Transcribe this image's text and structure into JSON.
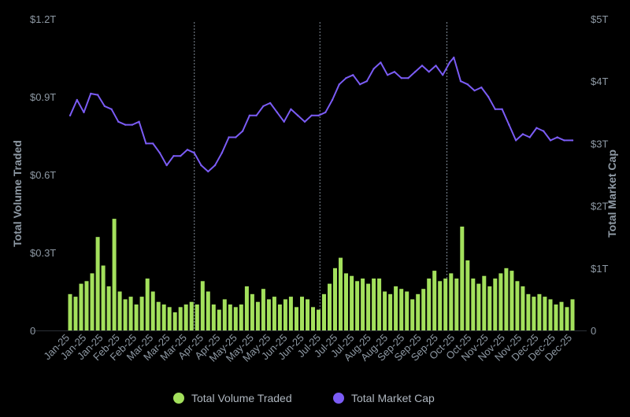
{
  "chart_data": {
    "type": "bar+line",
    "title": "",
    "left_axis": {
      "label": "Total Volume Traded",
      "ticks": [
        "0",
        "$0.3T",
        "$0.6T",
        "$0.9T",
        "$1.2T"
      ],
      "range": [
        0,
        1.2
      ],
      "unit": "trillion USD"
    },
    "right_axis": {
      "label": "Total Market Cap",
      "ticks": [
        "0",
        "$1T",
        "$2T",
        "$3T",
        "$4T",
        "$5T"
      ],
      "range": [
        0,
        5
      ],
      "unit": "trillion USD"
    },
    "x_axis": {
      "range": [
        "2025-01-01",
        "2025-12-31"
      ],
      "tick_labels": [
        "Jan-25",
        "Jan-25",
        "Jan-25",
        "Feb-25",
        "Feb-25",
        "Mar-25",
        "Mar-25",
        "Mar-25",
        "Apr-25",
        "Apr-25",
        "May-25",
        "May-25",
        "May-25",
        "Jun-25",
        "Jun-25",
        "Jul-25",
        "Jul-25",
        "Jul-25",
        "Aug-25",
        "Aug-25",
        "Sep-25",
        "Sep-25",
        "Sep-25",
        "Oct-25",
        "Oct-25",
        "Nov-25",
        "Nov-25",
        "Nov-25",
        "Dec-25",
        "Dec-25",
        "Dec-25"
      ]
    },
    "reference_lines": [
      "2025-04-01",
      "2025-07-01",
      "2025-10-01"
    ],
    "grid": false,
    "legend": {
      "position": "bottom",
      "items": [
        {
          "name": "Total Volume Traded",
          "color": "#a3e05c"
        },
        {
          "name": "Total Market Cap",
          "color": "#7b5cf5"
        }
      ]
    },
    "series": [
      {
        "name": "Total Volume Traded",
        "type": "bar",
        "axis": "left",
        "color": "#a3e05c",
        "points": [
          {
            "date": "2025-01-01",
            "value": 0.14
          },
          {
            "date": "2025-01-05",
            "value": 0.13
          },
          {
            "date": "2025-01-09",
            "value": 0.18
          },
          {
            "date": "2025-01-13",
            "value": 0.19
          },
          {
            "date": "2025-01-17",
            "value": 0.22
          },
          {
            "date": "2025-01-21",
            "value": 0.36
          },
          {
            "date": "2025-01-25",
            "value": 0.25
          },
          {
            "date": "2025-01-29",
            "value": 0.17
          },
          {
            "date": "2025-02-02",
            "value": 0.43
          },
          {
            "date": "2025-02-06",
            "value": 0.15
          },
          {
            "date": "2025-02-10",
            "value": 0.12
          },
          {
            "date": "2025-02-14",
            "value": 0.13
          },
          {
            "date": "2025-02-18",
            "value": 0.1
          },
          {
            "date": "2025-02-22",
            "value": 0.13
          },
          {
            "date": "2025-02-26",
            "value": 0.2
          },
          {
            "date": "2025-03-02",
            "value": 0.15
          },
          {
            "date": "2025-03-06",
            "value": 0.11
          },
          {
            "date": "2025-03-10",
            "value": 0.1
          },
          {
            "date": "2025-03-14",
            "value": 0.09
          },
          {
            "date": "2025-03-18",
            "value": 0.07
          },
          {
            "date": "2025-03-22",
            "value": 0.09
          },
          {
            "date": "2025-03-26",
            "value": 0.1
          },
          {
            "date": "2025-03-30",
            "value": 0.11
          },
          {
            "date": "2025-04-03",
            "value": 0.1
          },
          {
            "date": "2025-04-07",
            "value": 0.19
          },
          {
            "date": "2025-04-11",
            "value": 0.15
          },
          {
            "date": "2025-04-15",
            "value": 0.1
          },
          {
            "date": "2025-04-19",
            "value": 0.08
          },
          {
            "date": "2025-04-23",
            "value": 0.12
          },
          {
            "date": "2025-04-27",
            "value": 0.1
          },
          {
            "date": "2025-05-01",
            "value": 0.09
          },
          {
            "date": "2025-05-05",
            "value": 0.1
          },
          {
            "date": "2025-05-09",
            "value": 0.17
          },
          {
            "date": "2025-05-13",
            "value": 0.14
          },
          {
            "date": "2025-05-17",
            "value": 0.11
          },
          {
            "date": "2025-05-21",
            "value": 0.16
          },
          {
            "date": "2025-05-25",
            "value": 0.12
          },
          {
            "date": "2025-05-29",
            "value": 0.13
          },
          {
            "date": "2025-06-02",
            "value": 0.1
          },
          {
            "date": "2025-06-06",
            "value": 0.12
          },
          {
            "date": "2025-06-10",
            "value": 0.13
          },
          {
            "date": "2025-06-14",
            "value": 0.09
          },
          {
            "date": "2025-06-18",
            "value": 0.13
          },
          {
            "date": "2025-06-22",
            "value": 0.12
          },
          {
            "date": "2025-06-26",
            "value": 0.09
          },
          {
            "date": "2025-06-30",
            "value": 0.08
          },
          {
            "date": "2025-07-04",
            "value": 0.14
          },
          {
            "date": "2025-07-08",
            "value": 0.18
          },
          {
            "date": "2025-07-12",
            "value": 0.24
          },
          {
            "date": "2025-07-16",
            "value": 0.28
          },
          {
            "date": "2025-07-20",
            "value": 0.22
          },
          {
            "date": "2025-07-24",
            "value": 0.21
          },
          {
            "date": "2025-07-28",
            "value": 0.19
          },
          {
            "date": "2025-08-01",
            "value": 0.2
          },
          {
            "date": "2025-08-05",
            "value": 0.18
          },
          {
            "date": "2025-08-09",
            "value": 0.2
          },
          {
            "date": "2025-08-13",
            "value": 0.2
          },
          {
            "date": "2025-08-17",
            "value": 0.15
          },
          {
            "date": "2025-08-21",
            "value": 0.14
          },
          {
            "date": "2025-08-25",
            "value": 0.17
          },
          {
            "date": "2025-08-29",
            "value": 0.16
          },
          {
            "date": "2025-09-02",
            "value": 0.15
          },
          {
            "date": "2025-09-06",
            "value": 0.12
          },
          {
            "date": "2025-09-10",
            "value": 0.14
          },
          {
            "date": "2025-09-14",
            "value": 0.16
          },
          {
            "date": "2025-09-18",
            "value": 0.2
          },
          {
            "date": "2025-09-22",
            "value": 0.23
          },
          {
            "date": "2025-09-26",
            "value": 0.19
          },
          {
            "date": "2025-09-30",
            "value": 0.2
          },
          {
            "date": "2025-10-04",
            "value": 0.22
          },
          {
            "date": "2025-10-08",
            "value": 0.2
          },
          {
            "date": "2025-10-12",
            "value": 0.4
          },
          {
            "date": "2025-10-16",
            "value": 0.27
          },
          {
            "date": "2025-10-20",
            "value": 0.2
          },
          {
            "date": "2025-10-24",
            "value": 0.18
          },
          {
            "date": "2025-10-28",
            "value": 0.21
          },
          {
            "date": "2025-11-01",
            "value": 0.17
          },
          {
            "date": "2025-11-05",
            "value": 0.2
          },
          {
            "date": "2025-11-09",
            "value": 0.22
          },
          {
            "date": "2025-11-13",
            "value": 0.24
          },
          {
            "date": "2025-11-17",
            "value": 0.23
          },
          {
            "date": "2025-11-21",
            "value": 0.19
          },
          {
            "date": "2025-11-25",
            "value": 0.17
          },
          {
            "date": "2025-11-29",
            "value": 0.14
          },
          {
            "date": "2025-12-03",
            "value": 0.13
          },
          {
            "date": "2025-12-07",
            "value": 0.14
          },
          {
            "date": "2025-12-11",
            "value": 0.13
          },
          {
            "date": "2025-12-15",
            "value": 0.12
          },
          {
            "date": "2025-12-19",
            "value": 0.1
          },
          {
            "date": "2025-12-23",
            "value": 0.11
          },
          {
            "date": "2025-12-27",
            "value": 0.09
          },
          {
            "date": "2025-12-31",
            "value": 0.12
          }
        ]
      },
      {
        "name": "Total Market Cap",
        "type": "line",
        "axis": "right",
        "color": "#7b5cf5",
        "points": [
          {
            "date": "2025-01-01",
            "value": 3.45
          },
          {
            "date": "2025-01-06",
            "value": 3.7
          },
          {
            "date": "2025-01-11",
            "value": 3.5
          },
          {
            "date": "2025-01-16",
            "value": 3.8
          },
          {
            "date": "2025-01-21",
            "value": 3.78
          },
          {
            "date": "2025-01-26",
            "value": 3.6
          },
          {
            "date": "2025-01-31",
            "value": 3.55
          },
          {
            "date": "2025-02-05",
            "value": 3.35
          },
          {
            "date": "2025-02-10",
            "value": 3.3
          },
          {
            "date": "2025-02-15",
            "value": 3.3
          },
          {
            "date": "2025-02-20",
            "value": 3.35
          },
          {
            "date": "2025-02-25",
            "value": 3.0
          },
          {
            "date": "2025-03-02",
            "value": 3.0
          },
          {
            "date": "2025-03-07",
            "value": 2.85
          },
          {
            "date": "2025-03-12",
            "value": 2.65
          },
          {
            "date": "2025-03-17",
            "value": 2.8
          },
          {
            "date": "2025-03-22",
            "value": 2.8
          },
          {
            "date": "2025-03-27",
            "value": 2.9
          },
          {
            "date": "2025-04-01",
            "value": 2.85
          },
          {
            "date": "2025-04-06",
            "value": 2.65
          },
          {
            "date": "2025-04-11",
            "value": 2.55
          },
          {
            "date": "2025-04-16",
            "value": 2.65
          },
          {
            "date": "2025-04-21",
            "value": 2.85
          },
          {
            "date": "2025-04-26",
            "value": 3.1
          },
          {
            "date": "2025-05-01",
            "value": 3.1
          },
          {
            "date": "2025-05-06",
            "value": 3.2
          },
          {
            "date": "2025-05-11",
            "value": 3.45
          },
          {
            "date": "2025-05-16",
            "value": 3.45
          },
          {
            "date": "2025-05-21",
            "value": 3.6
          },
          {
            "date": "2025-05-26",
            "value": 3.65
          },
          {
            "date": "2025-05-31",
            "value": 3.5
          },
          {
            "date": "2025-06-05",
            "value": 3.35
          },
          {
            "date": "2025-06-10",
            "value": 3.55
          },
          {
            "date": "2025-06-15",
            "value": 3.45
          },
          {
            "date": "2025-06-20",
            "value": 3.35
          },
          {
            "date": "2025-06-25",
            "value": 3.45
          },
          {
            "date": "2025-06-30",
            "value": 3.45
          },
          {
            "date": "2025-07-05",
            "value": 3.5
          },
          {
            "date": "2025-07-10",
            "value": 3.7
          },
          {
            "date": "2025-07-15",
            "value": 3.95
          },
          {
            "date": "2025-07-20",
            "value": 4.05
          },
          {
            "date": "2025-07-25",
            "value": 4.1
          },
          {
            "date": "2025-07-30",
            "value": 3.95
          },
          {
            "date": "2025-08-04",
            "value": 4.0
          },
          {
            "date": "2025-08-09",
            "value": 4.2
          },
          {
            "date": "2025-08-14",
            "value": 4.3
          },
          {
            "date": "2025-08-19",
            "value": 4.1
          },
          {
            "date": "2025-08-24",
            "value": 4.15
          },
          {
            "date": "2025-08-29",
            "value": 4.05
          },
          {
            "date": "2025-09-03",
            "value": 4.05
          },
          {
            "date": "2025-09-08",
            "value": 4.15
          },
          {
            "date": "2025-09-13",
            "value": 4.25
          },
          {
            "date": "2025-09-18",
            "value": 4.15
          },
          {
            "date": "2025-09-23",
            "value": 4.25
          },
          {
            "date": "2025-09-28",
            "value": 4.1
          },
          {
            "date": "2025-10-03",
            "value": 4.3
          },
          {
            "date": "2025-10-06",
            "value": 4.38
          },
          {
            "date": "2025-10-11",
            "value": 4.0
          },
          {
            "date": "2025-10-16",
            "value": 3.95
          },
          {
            "date": "2025-10-21",
            "value": 3.85
          },
          {
            "date": "2025-10-26",
            "value": 3.9
          },
          {
            "date": "2025-10-31",
            "value": 3.75
          },
          {
            "date": "2025-11-05",
            "value": 3.55
          },
          {
            "date": "2025-11-10",
            "value": 3.55
          },
          {
            "date": "2025-11-15",
            "value": 3.3
          },
          {
            "date": "2025-11-20",
            "value": 3.05
          },
          {
            "date": "2025-11-25",
            "value": 3.15
          },
          {
            "date": "2025-11-30",
            "value": 3.1
          },
          {
            "date": "2025-12-05",
            "value": 3.25
          },
          {
            "date": "2025-12-10",
            "value": 3.2
          },
          {
            "date": "2025-12-15",
            "value": 3.05
          },
          {
            "date": "2025-12-20",
            "value": 3.1
          },
          {
            "date": "2025-12-25",
            "value": 3.05
          },
          {
            "date": "2025-12-31",
            "value": 3.05
          }
        ]
      }
    ]
  }
}
